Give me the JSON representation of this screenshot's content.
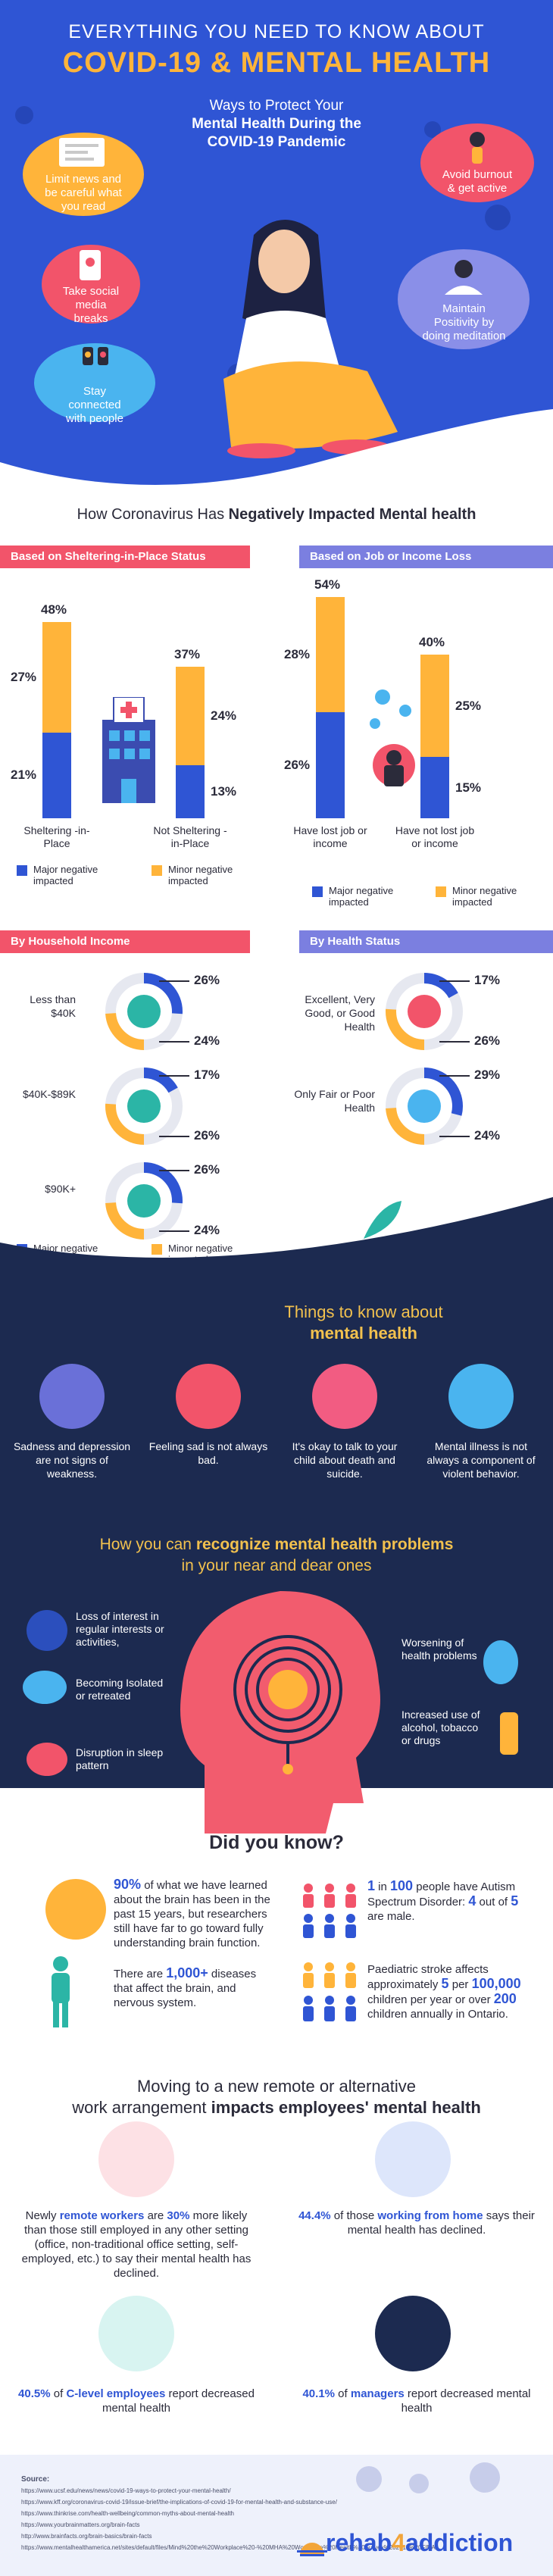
{
  "hero": {
    "title_line1": "EVERYTHING YOU NEED TO KNOW ABOUT",
    "title_line2": "COVID-19 & MENTAL HEALTH",
    "subtitle_line1": "Ways to Protect Your",
    "subtitle_line2": "Mental Health During the",
    "subtitle_line3": "COVID-19 Pandemic",
    "tips": [
      {
        "text": "Limit news and be careful what you read",
        "color": "#ffb43a"
      },
      {
        "text": "Avoid burnout & get active",
        "color": "#f2546a"
      },
      {
        "text": "Take social media breaks",
        "color": "#f2546a"
      },
      {
        "text": "Maintain Positivity by doing meditation",
        "color": "#8a8fe8"
      },
      {
        "text": "Stay connected with people",
        "color": "#4ab4ef"
      }
    ]
  },
  "impact": {
    "title_prefix": "How Coronavirus Has ",
    "title_bold": "Negatively Impacted Mental health",
    "shelter": {
      "header": "Based on Sheltering-in-Place Status",
      "groups": [
        {
          "label": "Sheltering -in-Place",
          "major": 21,
          "minor": 27,
          "total": 48
        },
        {
          "label": "Not Sheltering -in-Place",
          "major": 13,
          "minor": 24,
          "total": 37
        }
      ]
    },
    "job": {
      "header": "Based on Job or Income Loss",
      "groups": [
        {
          "label": "Have lost job or income",
          "major": 26,
          "minor": 28,
          "total": 54
        },
        {
          "label": "Have not lost job or income",
          "major": 15,
          "minor": 25,
          "total": 40
        }
      ]
    },
    "legend_major": "Major negative impacted",
    "legend_minor": "Minor negative impacted",
    "colors": {
      "major": "#2f55d4",
      "minor": "#ffb43a"
    },
    "household": {
      "header": "By Household Income",
      "rows": [
        {
          "label": "Less than $40K",
          "major": 26,
          "minor": 24
        },
        {
          "label": "$40K-$89K",
          "major": 17,
          "minor": 26
        },
        {
          "label": "$90K+",
          "major": 26,
          "minor": 24
        }
      ]
    },
    "health": {
      "header": "By Health Status",
      "rows": [
        {
          "label": "Excellent, Very Good, or Good Health",
          "major": 17,
          "minor": 26
        },
        {
          "label": "Only Fair or Poor Health",
          "major": 29,
          "minor": 24
        }
      ]
    }
  },
  "things": {
    "title_line1": "Things to know about",
    "title_line2": "mental health",
    "items": [
      {
        "text": "Sadness and depression are not signs of weakness."
      },
      {
        "text": "Feeling sad is not always bad."
      },
      {
        "text": "It's okay to talk to your child about death and suicide."
      },
      {
        "text": "Mental illness is not always a component of violent behavior."
      }
    ]
  },
  "recognize": {
    "title_prefix": "How you can ",
    "title_bold": "recognize mental health problems",
    "title_line2": "in your near and dear ones",
    "left": [
      "Loss of interest in regular interests or activities,",
      "Becoming Isolated or retreated",
      "Disruption in sleep pattern"
    ],
    "right": [
      "Worsening of health problems",
      "Increased use of alcohol, tobacco or drugs"
    ]
  },
  "dyk": {
    "title": "Did you know?",
    "brain": {
      "hl": "90%",
      "text": " of what we have learned about the brain has been in the past 15 years, but researchers still have far to go toward fully understanding brain function."
    },
    "autism": {
      "hl1": "1",
      "mid1": " in ",
      "hl2": "100",
      "mid2": " people have Autism Spectrum Disorder: ",
      "hl3": "4",
      "mid3": " out of ",
      "hl4": "5",
      "mid4": " are male."
    },
    "diseases": {
      "pre": "There are ",
      "hl": "1,000+",
      "post": " diseases that affect the brain, and nervous system."
    },
    "stroke": {
      "pre": "Paediatric stroke affects approximately ",
      "hl1": "5",
      "mid": " per ",
      "hl2": "100,000",
      "mid2": " children per year or over ",
      "hl3": "200",
      "post": " children annually in Ontario."
    }
  },
  "work": {
    "title_line1": "Moving to a new remote or alternative",
    "title_pre": "work arrangement ",
    "title_bold": "impacts employees' mental health",
    "remote": {
      "pre": "Newly ",
      "hl1": "remote workers",
      "mid": " are ",
      "hl2": "30%",
      "post": " more likely than those still employed in any other setting (office, non-traditional office setting, self-employed, etc.) to say their mental health has declined."
    },
    "home": {
      "hl1": "44.4%",
      "mid": " of those ",
      "hl2": "working from home",
      "post": " says their mental health has declined."
    },
    "clevel": {
      "hl1": "40.5%",
      "mid": " of ",
      "hl2": "C-level employees",
      "post": " report decreased mental health"
    },
    "managers": {
      "hl1": "40.1%",
      "mid": " of ",
      "hl2": "managers",
      "post": " report decreased mental health"
    }
  },
  "footer": {
    "sources_title": "Source:",
    "sources": [
      "https://www.ucsf.edu/news/news/covid-19-ways-to-protect-your-mental-health/",
      "https://www.kff.org/coronavirus-covid-19/issue-brief/the-implications-of-covid-19-for-mental-health-and-substance-use/",
      "https://www.thinkrise.com/health-wellbeing/common-myths-about-mental-health",
      "https://www.yourbrainmatters.org/brain-facts",
      "http://www.brainfacts.org/brain-basics/brain-facts",
      "https://www.mentalhealthamerica.net/sites/default/files/Mind%20the%20Workplace%20-%20MHA%20Workplace%20Health%20Survey%202017%20FINAL.pdf"
    ],
    "logo_pre": "rehab",
    "logo_num": "4",
    "logo_post": "addiction"
  }
}
